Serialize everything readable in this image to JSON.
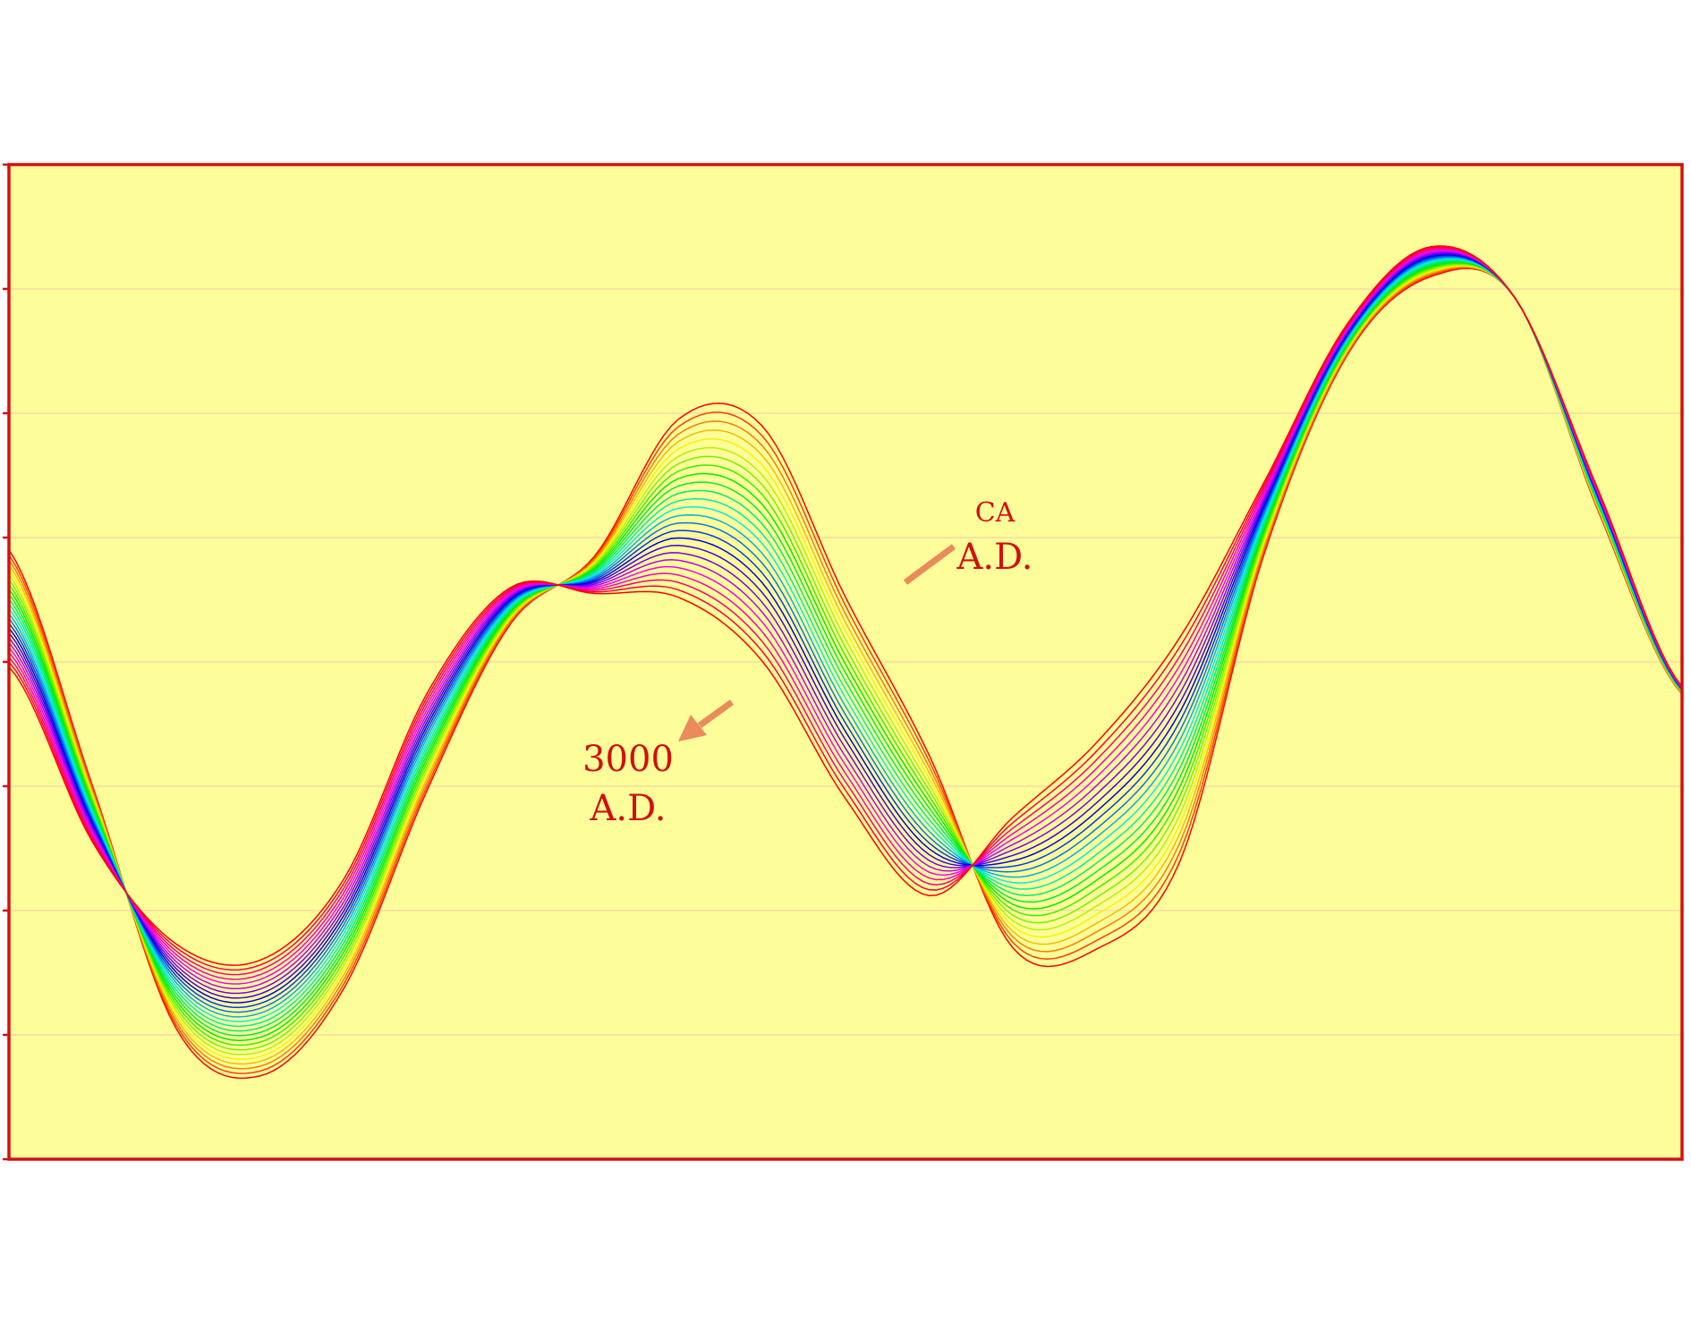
{
  "chart_data": {
    "type": "line",
    "title": "",
    "xlabel": "",
    "ylabel": "",
    "xlim": [
      0,
      1
    ],
    "ylim": [
      -4,
      4
    ],
    "grid": true,
    "legend": "none",
    "y_ticks": [
      -4,
      -3,
      -2,
      -1,
      0,
      1,
      2,
      3,
      4
    ],
    "x_samples": [
      0,
      0.05,
      0.1,
      0.15,
      0.2,
      0.25,
      0.3,
      0.35,
      0.4,
      0.45,
      0.5,
      0.55,
      0.6,
      0.65,
      0.7,
      0.75,
      0.8,
      0.85,
      0.9,
      0.95,
      1
    ],
    "series_start": [
      0.9,
      -1.0,
      -2.95,
      -3.33,
      -2.63,
      -1.03,
      0.31,
      0.85,
      1.95,
      1.9,
      0.52,
      -0.75,
      -2.3,
      -2.31,
      -1.6,
      0.86,
      2.47,
      3.1,
      2.93,
      1.21,
      -0.26
    ],
    "series_end": [
      -0.04,
      -1.45,
      -2.27,
      -2.4,
      -1.75,
      -0.25,
      0.6,
      0.55,
      0.52,
      0.01,
      -1.1,
      -1.88,
      -1.25,
      -0.65,
      0.2,
      1.44,
      2.72,
      3.34,
      2.93,
      1.38,
      -0.2
    ],
    "series_count": 25,
    "colors": {
      "background": "#fdfd9a",
      "frame": "#d50f0f",
      "grid": "#f4d4a6",
      "arrow": "#eb8a5a",
      "label_text": "#d10f0f"
    },
    "annotations": [
      {
        "label_lines": [
          "CA",
          "A.D."
        ],
        "points_to": "first curve (red, upper)"
      },
      {
        "label_lines": [
          "3000",
          "A.D."
        ],
        "points_to": "last curve (red, lower)"
      }
    ]
  }
}
